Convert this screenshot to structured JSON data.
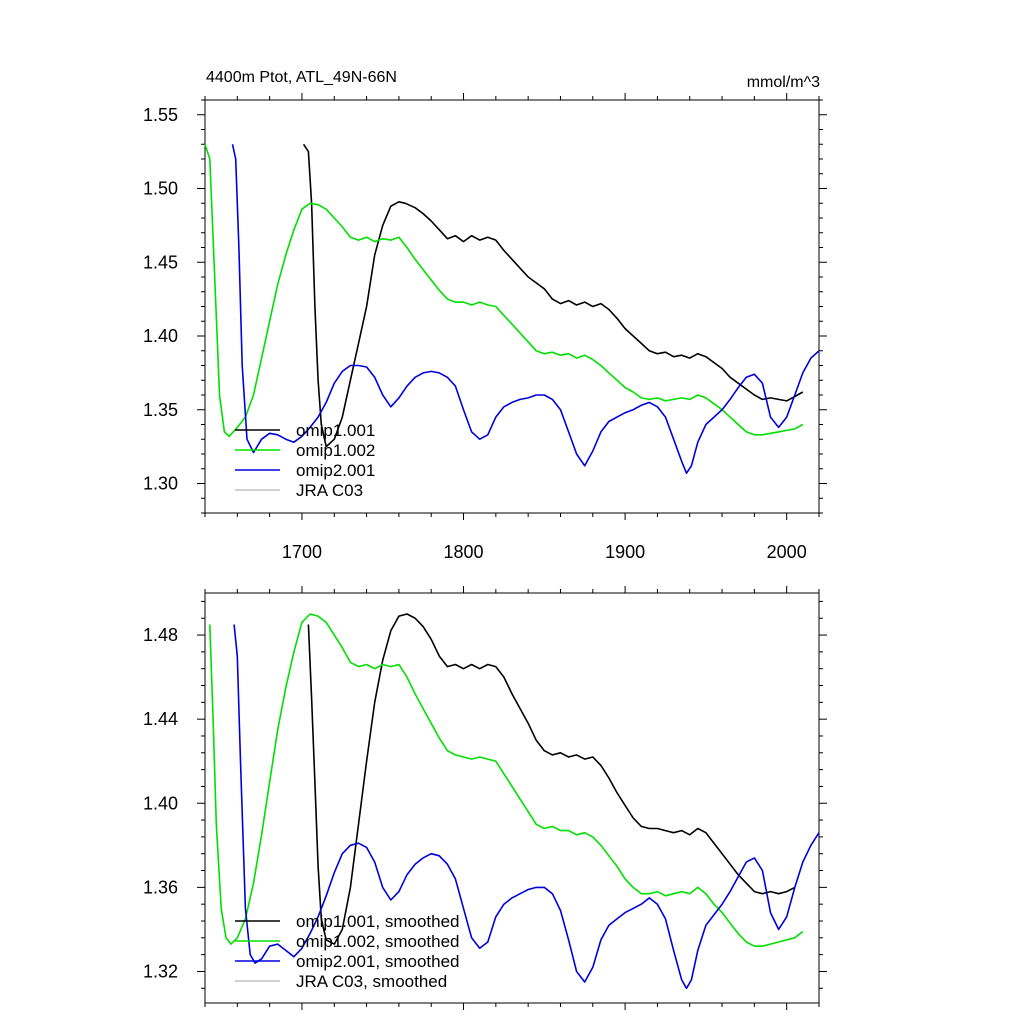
{
  "chart_data": [
    {
      "type": "line",
      "title": "4400m Ptot, ATL_49N-66N",
      "units": "mmol/m^3",
      "xlim": [
        1640,
        2020
      ],
      "ylim": [
        1.28,
        1.56
      ],
      "xticks": [
        1700,
        1800,
        1900,
        2000
      ],
      "xtick_labels": [
        "1700",
        "1800",
        "1900",
        "2000"
      ],
      "yticks": [
        1.3,
        1.35,
        1.4,
        1.45,
        1.5,
        1.55
      ],
      "ytick_labels": [
        "1.30",
        "1.35",
        "1.40",
        "1.45",
        "1.50",
        "1.55"
      ],
      "legend_position": "bottom-left",
      "series": [
        {
          "name": "omip1.001",
          "color": "#000000",
          "x": [
            1701,
            1704,
            1706,
            1708,
            1710,
            1712,
            1715,
            1720,
            1725,
            1730,
            1735,
            1740,
            1745,
            1750,
            1755,
            1760,
            1764,
            1770,
            1775,
            1780,
            1785,
            1790,
            1795,
            1800,
            1805,
            1810,
            1815,
            1820,
            1825,
            1830,
            1835,
            1840,
            1845,
            1850,
            1855,
            1860,
            1865,
            1870,
            1875,
            1880,
            1885,
            1890,
            1895,
            1900,
            1905,
            1910,
            1915,
            1920,
            1925,
            1930,
            1935,
            1940,
            1945,
            1950,
            1955,
            1960,
            1965,
            1970,
            1975,
            1980,
            1985,
            1990,
            1995,
            2000,
            2005,
            2010
          ],
          "values": [
            1.53,
            1.525,
            1.49,
            1.42,
            1.37,
            1.34,
            1.325,
            1.33,
            1.345,
            1.37,
            1.395,
            1.42,
            1.455,
            1.475,
            1.488,
            1.491,
            1.49,
            1.487,
            1.483,
            1.478,
            1.472,
            1.466,
            1.468,
            1.464,
            1.468,
            1.465,
            1.467,
            1.465,
            1.458,
            1.452,
            1.446,
            1.44,
            1.436,
            1.432,
            1.425,
            1.422,
            1.424,
            1.421,
            1.423,
            1.42,
            1.422,
            1.418,
            1.412,
            1.405,
            1.4,
            1.395,
            1.39,
            1.388,
            1.389,
            1.386,
            1.387,
            1.385,
            1.388,
            1.386,
            1.382,
            1.378,
            1.372,
            1.368,
            1.364,
            1.36,
            1.357,
            1.358,
            1.357,
            1.356,
            1.359,
            1.362
          ]
        },
        {
          "name": "omip1.002",
          "color": "#00e000",
          "x": [
            1640,
            1643,
            1646,
            1649,
            1652,
            1655,
            1660,
            1665,
            1670,
            1675,
            1680,
            1685,
            1690,
            1695,
            1700,
            1705,
            1710,
            1715,
            1720,
            1725,
            1730,
            1735,
            1740,
            1745,
            1750,
            1755,
            1760,
            1765,
            1770,
            1775,
            1780,
            1785,
            1790,
            1795,
            1800,
            1805,
            1810,
            1815,
            1820,
            1825,
            1830,
            1835,
            1840,
            1845,
            1850,
            1855,
            1860,
            1865,
            1870,
            1875,
            1880,
            1885,
            1890,
            1895,
            1900,
            1905,
            1910,
            1915,
            1920,
            1925,
            1930,
            1935,
            1940,
            1945,
            1950,
            1955,
            1960,
            1965,
            1970,
            1975,
            1980,
            1985,
            1990,
            1995,
            2000,
            2005,
            2010
          ],
          "values": [
            1.53,
            1.52,
            1.44,
            1.36,
            1.335,
            1.332,
            1.338,
            1.345,
            1.36,
            1.385,
            1.41,
            1.435,
            1.455,
            1.472,
            1.486,
            1.49,
            1.489,
            1.486,
            1.48,
            1.474,
            1.467,
            1.465,
            1.467,
            1.464,
            1.466,
            1.465,
            1.467,
            1.46,
            1.452,
            1.445,
            1.438,
            1.431,
            1.425,
            1.423,
            1.423,
            1.421,
            1.423,
            1.421,
            1.42,
            1.414,
            1.408,
            1.402,
            1.396,
            1.39,
            1.388,
            1.389,
            1.387,
            1.388,
            1.385,
            1.387,
            1.384,
            1.38,
            1.375,
            1.37,
            1.365,
            1.362,
            1.358,
            1.357,
            1.358,
            1.356,
            1.357,
            1.358,
            1.357,
            1.36,
            1.358,
            1.354,
            1.35,
            1.345,
            1.34,
            1.335,
            1.333,
            1.333,
            1.334,
            1.335,
            1.336,
            1.337,
            1.34
          ]
        },
        {
          "name": "omip2.001",
          "color": "#0000dd",
          "x": [
            1657,
            1659,
            1661,
            1663,
            1666,
            1670,
            1675,
            1680,
            1685,
            1690,
            1695,
            1700,
            1705,
            1710,
            1715,
            1720,
            1725,
            1730,
            1735,
            1740,
            1745,
            1750,
            1755,
            1760,
            1765,
            1770,
            1775,
            1780,
            1785,
            1790,
            1795,
            1800,
            1805,
            1810,
            1815,
            1820,
            1825,
            1830,
            1835,
            1840,
            1845,
            1850,
            1855,
            1860,
            1865,
            1870,
            1875,
            1880,
            1885,
            1890,
            1895,
            1900,
            1905,
            1910,
            1915,
            1920,
            1925,
            1930,
            1935,
            1938,
            1941,
            1945,
            1950,
            1955,
            1960,
            1965,
            1970,
            1975,
            1980,
            1985,
            1990,
            1995,
            2000,
            2005,
            2010,
            2015,
            2020
          ],
          "values": [
            1.53,
            1.52,
            1.46,
            1.38,
            1.33,
            1.321,
            1.33,
            1.334,
            1.333,
            1.33,
            1.328,
            1.332,
            1.338,
            1.345,
            1.355,
            1.368,
            1.376,
            1.38,
            1.38,
            1.379,
            1.372,
            1.36,
            1.352,
            1.358,
            1.366,
            1.372,
            1.375,
            1.376,
            1.375,
            1.372,
            1.366,
            1.35,
            1.335,
            1.33,
            1.333,
            1.345,
            1.352,
            1.355,
            1.357,
            1.358,
            1.36,
            1.36,
            1.357,
            1.35,
            1.335,
            1.32,
            1.312,
            1.322,
            1.335,
            1.342,
            1.345,
            1.348,
            1.35,
            1.353,
            1.355,
            1.352,
            1.345,
            1.33,
            1.315,
            1.307,
            1.312,
            1.328,
            1.34,
            1.345,
            1.35,
            1.357,
            1.365,
            1.372,
            1.374,
            1.368,
            1.345,
            1.338,
            1.345,
            1.36,
            1.375,
            1.385,
            1.39
          ]
        },
        {
          "name": "JRA C03",
          "color": "#c0c0c0",
          "x": [],
          "values": []
        }
      ]
    },
    {
      "type": "line",
      "title": "",
      "xlim": [
        1640,
        2020
      ],
      "ylim": [
        1.305,
        1.5
      ],
      "xticks": [
        1700,
        1800,
        1900,
        2000
      ],
      "yticks": [
        1.32,
        1.36,
        1.4,
        1.44,
        1.48
      ],
      "ytick_labels": [
        "1.32",
        "1.36",
        "1.40",
        "1.44",
        "1.48"
      ],
      "legend_position": "bottom-left",
      "series": [
        {
          "name": "omip1.001, smoothed",
          "color": "#000000",
          "x": [
            1704,
            1706,
            1708,
            1710,
            1712,
            1715,
            1720,
            1725,
            1730,
            1735,
            1740,
            1745,
            1750,
            1755,
            1760,
            1765,
            1770,
            1775,
            1780,
            1785,
            1790,
            1795,
            1800,
            1805,
            1810,
            1815,
            1820,
            1825,
            1830,
            1835,
            1840,
            1845,
            1850,
            1855,
            1860,
            1865,
            1870,
            1875,
            1880,
            1885,
            1890,
            1895,
            1900,
            1905,
            1910,
            1915,
            1920,
            1925,
            1930,
            1935,
            1940,
            1945,
            1950,
            1955,
            1960,
            1965,
            1970,
            1975,
            1980,
            1985,
            1990,
            1995,
            2000,
            2005
          ],
          "values": [
            1.485,
            1.45,
            1.41,
            1.37,
            1.345,
            1.335,
            1.333,
            1.34,
            1.36,
            1.39,
            1.42,
            1.448,
            1.468,
            1.482,
            1.489,
            1.49,
            1.488,
            1.484,
            1.478,
            1.47,
            1.465,
            1.466,
            1.464,
            1.466,
            1.464,
            1.466,
            1.465,
            1.46,
            1.452,
            1.445,
            1.438,
            1.43,
            1.425,
            1.423,
            1.424,
            1.422,
            1.423,
            1.421,
            1.422,
            1.418,
            1.412,
            1.405,
            1.399,
            1.393,
            1.389,
            1.388,
            1.388,
            1.387,
            1.386,
            1.387,
            1.385,
            1.388,
            1.386,
            1.381,
            1.376,
            1.371,
            1.366,
            1.362,
            1.358,
            1.357,
            1.358,
            1.357,
            1.358,
            1.36
          ]
        },
        {
          "name": "omip1.002, smoothed",
          "color": "#00e000",
          "x": [
            1643,
            1645,
            1647,
            1650,
            1653,
            1656,
            1660,
            1665,
            1670,
            1675,
            1680,
            1685,
            1690,
            1695,
            1700,
            1705,
            1710,
            1715,
            1720,
            1725,
            1730,
            1735,
            1740,
            1745,
            1750,
            1755,
            1760,
            1765,
            1770,
            1775,
            1780,
            1785,
            1790,
            1795,
            1800,
            1805,
            1810,
            1815,
            1820,
            1825,
            1830,
            1835,
            1840,
            1845,
            1850,
            1855,
            1860,
            1865,
            1870,
            1875,
            1880,
            1885,
            1890,
            1895,
            1900,
            1905,
            1910,
            1915,
            1920,
            1925,
            1930,
            1935,
            1940,
            1945,
            1950,
            1955,
            1960,
            1965,
            1970,
            1975,
            1980,
            1985,
            1990,
            1995,
            2000,
            2005,
            2010
          ],
          "values": [
            1.485,
            1.44,
            1.39,
            1.35,
            1.336,
            1.333,
            1.336,
            1.345,
            1.362,
            1.385,
            1.41,
            1.435,
            1.455,
            1.472,
            1.486,
            1.49,
            1.489,
            1.486,
            1.48,
            1.474,
            1.467,
            1.465,
            1.466,
            1.464,
            1.466,
            1.465,
            1.466,
            1.46,
            1.452,
            1.445,
            1.438,
            1.431,
            1.425,
            1.423,
            1.422,
            1.421,
            1.422,
            1.421,
            1.42,
            1.414,
            1.408,
            1.402,
            1.396,
            1.39,
            1.388,
            1.389,
            1.387,
            1.387,
            1.385,
            1.386,
            1.384,
            1.38,
            1.375,
            1.37,
            1.364,
            1.36,
            1.357,
            1.357,
            1.358,
            1.356,
            1.357,
            1.358,
            1.357,
            1.36,
            1.357,
            1.352,
            1.348,
            1.343,
            1.338,
            1.334,
            1.332,
            1.332,
            1.333,
            1.334,
            1.335,
            1.336,
            1.339
          ]
        },
        {
          "name": "omip2.001, smoothed",
          "color": "#0000dd",
          "x": [
            1658,
            1660,
            1662,
            1665,
            1668,
            1671,
            1675,
            1680,
            1685,
            1690,
            1695,
            1700,
            1705,
            1710,
            1715,
            1720,
            1725,
            1730,
            1735,
            1740,
            1745,
            1750,
            1755,
            1760,
            1765,
            1770,
            1775,
            1780,
            1785,
            1790,
            1795,
            1800,
            1805,
            1810,
            1815,
            1820,
            1825,
            1830,
            1835,
            1840,
            1845,
            1850,
            1855,
            1860,
            1865,
            1870,
            1875,
            1880,
            1885,
            1890,
            1895,
            1900,
            1905,
            1910,
            1915,
            1920,
            1925,
            1930,
            1935,
            1938,
            1941,
            1945,
            1950,
            1955,
            1960,
            1965,
            1970,
            1975,
            1980,
            1985,
            1990,
            1995,
            2000,
            2005,
            2010,
            2015,
            2020
          ],
          "values": [
            1.485,
            1.47,
            1.42,
            1.35,
            1.328,
            1.324,
            1.326,
            1.332,
            1.333,
            1.33,
            1.327,
            1.331,
            1.338,
            1.346,
            1.356,
            1.367,
            1.376,
            1.38,
            1.381,
            1.379,
            1.372,
            1.36,
            1.354,
            1.358,
            1.366,
            1.371,
            1.374,
            1.376,
            1.375,
            1.371,
            1.364,
            1.35,
            1.336,
            1.331,
            1.334,
            1.346,
            1.352,
            1.355,
            1.357,
            1.359,
            1.36,
            1.36,
            1.357,
            1.349,
            1.335,
            1.32,
            1.315,
            1.322,
            1.335,
            1.342,
            1.345,
            1.348,
            1.35,
            1.352,
            1.355,
            1.352,
            1.345,
            1.33,
            1.316,
            1.312,
            1.316,
            1.33,
            1.342,
            1.347,
            1.352,
            1.358,
            1.365,
            1.372,
            1.374,
            1.368,
            1.348,
            1.34,
            1.346,
            1.36,
            1.372,
            1.38,
            1.386
          ]
        },
        {
          "name": "JRA C03, smoothed",
          "color": "#c0c0c0",
          "x": [],
          "values": []
        }
      ]
    }
  ]
}
